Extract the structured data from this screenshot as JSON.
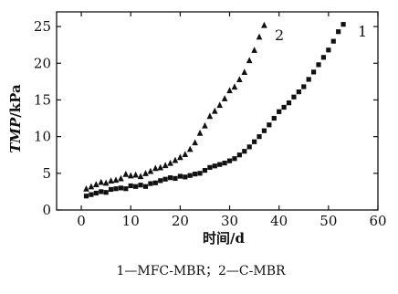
{
  "chart_data": {
    "type": "scatter",
    "xlabel": "时间/d",
    "ylabel_italic": "TMP",
    "ylabel_unit": "/kPa",
    "xlim": [
      -5,
      60
    ],
    "ylim": [
      0,
      27
    ],
    "xticks": [
      0,
      10,
      20,
      30,
      40,
      50,
      60
    ],
    "yticks": [
      0,
      5,
      10,
      15,
      20,
      25
    ],
    "grid": false,
    "caption": "1—MFC-MBR；2—C-MBR",
    "series": [
      {
        "name": "1",
        "marker": "square",
        "color": "#111111",
        "x": [
          1,
          2,
          3,
          4,
          5,
          6,
          7,
          8,
          9,
          10,
          11,
          12,
          13,
          14,
          15,
          16,
          17,
          18,
          19,
          20,
          21,
          22,
          23,
          24,
          25,
          26,
          27,
          28,
          29,
          30,
          31,
          32,
          33,
          34,
          35,
          36,
          37,
          38,
          39,
          40,
          41,
          42,
          43,
          44,
          45,
          46,
          47,
          48,
          49,
          50,
          51,
          52,
          53
        ],
        "y": [
          1.9,
          2.1,
          2.3,
          2.5,
          2.4,
          2.8,
          2.9,
          3.0,
          2.9,
          3.3,
          3.2,
          3.4,
          3.2,
          3.6,
          3.7,
          4.0,
          4.2,
          4.4,
          4.3,
          4.6,
          4.5,
          4.7,
          4.9,
          5.0,
          5.4,
          5.8,
          6.0,
          6.2,
          6.4,
          6.7,
          7.0,
          7.5,
          8.0,
          8.6,
          9.3,
          10.0,
          10.8,
          11.6,
          12.5,
          13.4,
          14.0,
          14.6,
          15.4,
          16.1,
          16.8,
          17.8,
          18.8,
          19.8,
          20.8,
          21.8,
          23.0,
          24.3,
          25.3
        ]
      },
      {
        "name": "2",
        "marker": "triangle",
        "color": "#111111",
        "x": [
          1,
          2,
          3,
          4,
          5,
          6,
          7,
          8,
          9,
          10,
          11,
          12,
          13,
          14,
          15,
          16,
          17,
          18,
          19,
          20,
          21,
          22,
          23,
          24,
          25,
          26,
          27,
          28,
          29,
          30,
          31,
          32,
          33,
          34,
          35,
          36,
          37
        ],
        "y": [
          2.9,
          3.2,
          3.5,
          3.8,
          3.7,
          4.0,
          4.1,
          4.3,
          4.9,
          4.7,
          4.8,
          4.6,
          5.0,
          5.3,
          5.7,
          5.8,
          6.1,
          6.4,
          6.8,
          7.2,
          7.6,
          8.3,
          9.2,
          10.5,
          11.5,
          12.8,
          13.5,
          14.3,
          15.2,
          16.3,
          16.8,
          17.8,
          18.8,
          20.4,
          21.8,
          23.6,
          25.2
        ]
      }
    ]
  }
}
